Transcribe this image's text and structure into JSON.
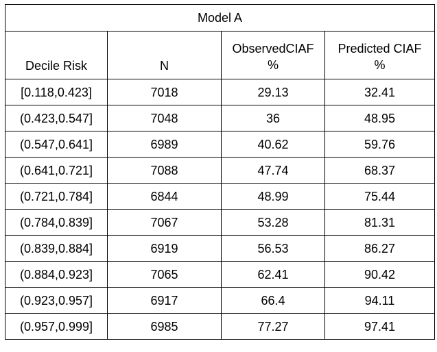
{
  "table": {
    "title": "Model A",
    "headers": {
      "decile_risk": "Decile Risk",
      "n": "N",
      "observed_line1": "ObservedCIAF",
      "observed_line2": "%",
      "predicted_line1": "Predicted CIAF",
      "predicted_line2": "%"
    },
    "rows": [
      {
        "decile": "[0.118,0.423]",
        "n": "7018",
        "observed": "29.13",
        "predicted": "32.41"
      },
      {
        "decile": "(0.423,0.547]",
        "n": "7048",
        "observed": "36",
        "predicted": "48.95"
      },
      {
        "decile": "(0.547,0.641]",
        "n": "6989",
        "observed": "40.62",
        "predicted": "59.76"
      },
      {
        "decile": "(0.641,0.721]",
        "n": "7088",
        "observed": "47.74",
        "predicted": "68.37"
      },
      {
        "decile": "(0.721,0.784]",
        "n": "6844",
        "observed": "48.99",
        "predicted": "75.44"
      },
      {
        "decile": "(0.784,0.839]",
        "n": "7067",
        "observed": "53.28",
        "predicted": "81.31"
      },
      {
        "decile": "(0.839,0.884]",
        "n": "6919",
        "observed": "56.53",
        "predicted": "86.27"
      },
      {
        "decile": "(0.884,0.923]",
        "n": "7065",
        "observed": "62.41",
        "predicted": "90.42"
      },
      {
        "decile": "(0.923,0.957]",
        "n": "6917",
        "observed": "66.4",
        "predicted": "94.11"
      },
      {
        "decile": "(0.957,0.999]",
        "n": "6985",
        "observed": "77.27",
        "predicted": "97.41"
      }
    ]
  }
}
